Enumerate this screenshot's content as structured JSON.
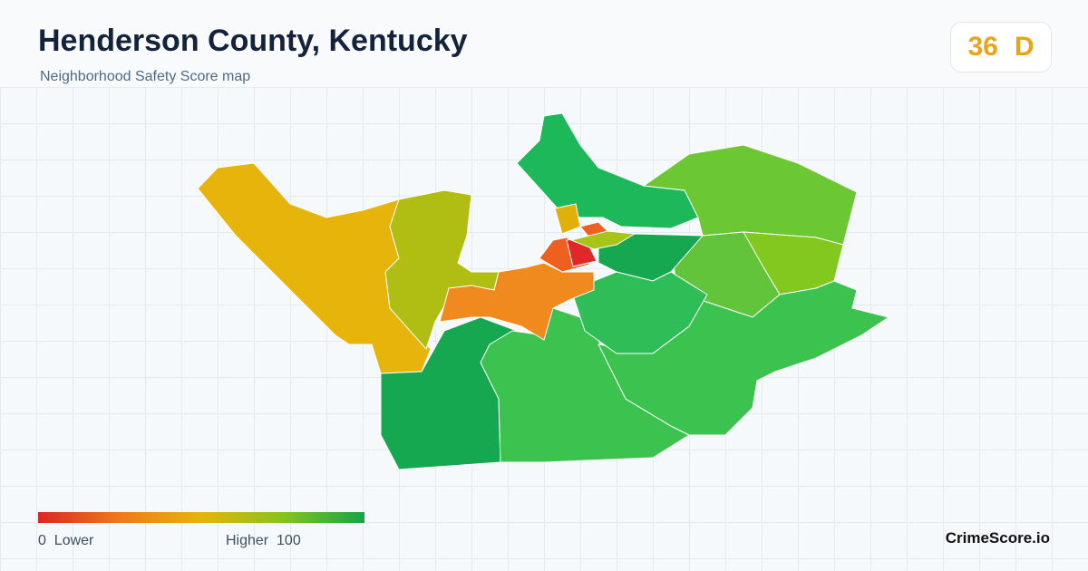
{
  "header": {
    "title": "Henderson County, Kentucky",
    "subtitle": "Neighborhood Safety Score map"
  },
  "score": {
    "value": 36,
    "grade": "D"
  },
  "legend": {
    "min": 0,
    "min_label": "Lower",
    "max_label": "Higher",
    "max": 100
  },
  "brand": "CrimeScore.io"
}
